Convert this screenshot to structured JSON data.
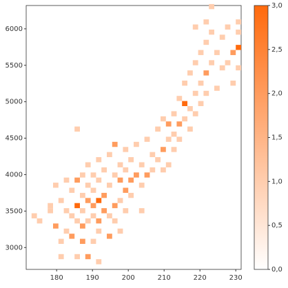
{
  "chart_data": {
    "type": "hist2d",
    "xlim": [
      171.5,
      231.5
    ],
    "ylim": [
      2700,
      6320
    ],
    "xticks": [
      180,
      190,
      200,
      210,
      220,
      230
    ],
    "yticks": [
      3000,
      3500,
      4000,
      4500,
      5000,
      5500,
      6000
    ],
    "bin_width": 1.5,
    "bin_height": 70,
    "clim": [
      0,
      3
    ],
    "colors": [
      "#ffffff",
      "#ff6a0d"
    ],
    "cticks": [
      {
        "value": 0,
        "label": "0,0"
      },
      {
        "value": 0.5,
        "label": "0,5"
      },
      {
        "value": 1,
        "label": "1,0"
      },
      {
        "value": 1.5,
        "label": "1,5"
      },
      {
        "value": 2,
        "label": "2,0"
      },
      {
        "value": 2.5,
        "label": "2,5"
      },
      {
        "value": 3,
        "label": "3,0"
      }
    ],
    "cells": [
      [
        173,
        3400,
        1
      ],
      [
        174.5,
        3330,
        1
      ],
      [
        177.5,
        3470,
        1
      ],
      [
        177.5,
        3540,
        1
      ],
      [
        179,
        3260,
        2
      ],
      [
        179,
        3820,
        1
      ],
      [
        180.5,
        3050,
        1
      ],
      [
        180.5,
        3610,
        1
      ],
      [
        180.5,
        2840,
        1
      ],
      [
        182,
        3190,
        1
      ],
      [
        182,
        3470,
        1
      ],
      [
        182,
        3890,
        1
      ],
      [
        183.5,
        3120,
        2
      ],
      [
        183.5,
        3400,
        1
      ],
      [
        183.5,
        3750,
        1
      ],
      [
        185,
        3330,
        1
      ],
      [
        185,
        3540,
        3
      ],
      [
        185,
        3890,
        2
      ],
      [
        185,
        4590,
        1
      ],
      [
        185,
        2840,
        1
      ],
      [
        186.5,
        3050,
        2
      ],
      [
        186.5,
        3260,
        2
      ],
      [
        186.5,
        3470,
        1
      ],
      [
        186.5,
        3680,
        1
      ],
      [
        186.5,
        3960,
        1
      ],
      [
        188,
        3330,
        1
      ],
      [
        188,
        3610,
        2
      ],
      [
        188,
        3820,
        1
      ],
      [
        188,
        4100,
        1
      ],
      [
        188,
        2840,
        2
      ],
      [
        189.5,
        3050,
        1
      ],
      [
        189.5,
        3400,
        1
      ],
      [
        189.5,
        3540,
        2
      ],
      [
        189.5,
        3750,
        1
      ],
      [
        189.5,
        3960,
        1
      ],
      [
        191,
        3190,
        1
      ],
      [
        191,
        3330,
        2
      ],
      [
        191,
        3610,
        3
      ],
      [
        191,
        3890,
        1
      ],
      [
        191,
        4170,
        1
      ],
      [
        191,
        2770,
        1
      ],
      [
        192.5,
        3470,
        2
      ],
      [
        192.5,
        3680,
        2
      ],
      [
        192.5,
        4030,
        1
      ],
      [
        194,
        3120,
        2
      ],
      [
        194,
        3400,
        1
      ],
      [
        194,
        3820,
        1
      ],
      [
        194,
        4240,
        1
      ],
      [
        195.5,
        3330,
        1
      ],
      [
        195.5,
        3540,
        2
      ],
      [
        195.5,
        3960,
        1
      ],
      [
        195.5,
        4380,
        2
      ],
      [
        197,
        3610,
        1
      ],
      [
        197,
        3890,
        2
      ],
      [
        197,
        4100,
        1
      ],
      [
        197,
        3190,
        1
      ],
      [
        198.5,
        3470,
        1
      ],
      [
        198.5,
        3750,
        2
      ],
      [
        198.5,
        4030,
        1
      ],
      [
        198.5,
        4310,
        1
      ],
      [
        200,
        3890,
        2
      ],
      [
        200,
        4170,
        1
      ],
      [
        200,
        3680,
        1
      ],
      [
        201.5,
        3960,
        2
      ],
      [
        201.5,
        4380,
        1
      ],
      [
        203,
        3820,
        1
      ],
      [
        203,
        4100,
        1
      ],
      [
        203,
        3470,
        1
      ],
      [
        204.5,
        3960,
        2
      ],
      [
        204.5,
        4450,
        1
      ],
      [
        206,
        4030,
        1
      ],
      [
        206,
        4240,
        1
      ],
      [
        207.5,
        4170,
        1
      ],
      [
        207.5,
        4590,
        1
      ],
      [
        209,
        4310,
        2
      ],
      [
        209,
        4730,
        1
      ],
      [
        209,
        4030,
        1
      ],
      [
        210.5,
        4450,
        1
      ],
      [
        210.5,
        4660,
        2
      ],
      [
        210.5,
        4100,
        1
      ],
      [
        212,
        4520,
        1
      ],
      [
        212,
        4800,
        1
      ],
      [
        212,
        4310,
        1
      ],
      [
        213.5,
        4660,
        2
      ],
      [
        213.5,
        5010,
        1
      ],
      [
        213.5,
        4450,
        1
      ],
      [
        215,
        4730,
        1
      ],
      [
        215,
        4940,
        3
      ],
      [
        215,
        5220,
        1
      ],
      [
        216.5,
        4590,
        1
      ],
      [
        216.5,
        4870,
        1
      ],
      [
        216.5,
        5360,
        1
      ],
      [
        218,
        4800,
        1
      ],
      [
        218,
        5080,
        1
      ],
      [
        218,
        5500,
        1
      ],
      [
        219.5,
        5220,
        1
      ],
      [
        219.5,
        5640,
        1
      ],
      [
        219.5,
        4940,
        1
      ],
      [
        221,
        5360,
        2
      ],
      [
        221,
        5780,
        1
      ],
      [
        221,
        5080,
        1
      ],
      [
        222.5,
        5500,
        1
      ],
      [
        222.5,
        5920,
        1
      ],
      [
        222.5,
        6270,
        1
      ],
      [
        224,
        5640,
        1
      ],
      [
        224,
        5150,
        1
      ],
      [
        225.5,
        5850,
        1
      ],
      [
        225.5,
        5430,
        1
      ],
      [
        227,
        5500,
        1
      ],
      [
        227,
        5990,
        1
      ],
      [
        228.5,
        5640,
        2
      ],
      [
        228.5,
        5220,
        1
      ],
      [
        230,
        5710,
        3
      ],
      [
        230,
        6060,
        1
      ],
      [
        230,
        5430,
        1
      ],
      [
        230,
        5920,
        1
      ],
      [
        221,
        6060,
        1
      ],
      [
        218,
        5990,
        1
      ]
    ]
  }
}
